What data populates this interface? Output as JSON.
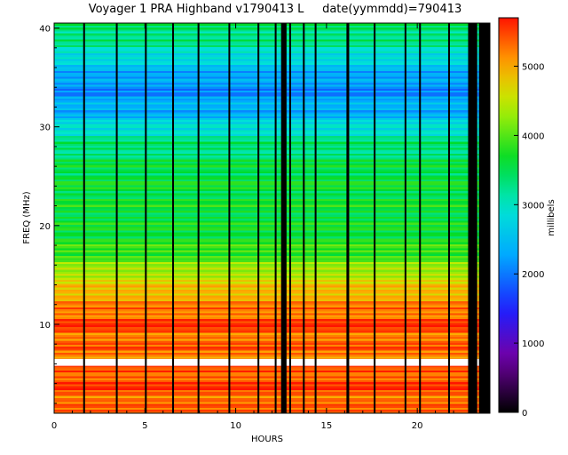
{
  "chart_data": {
    "type": "heatmap",
    "title": "Voyager 1 PRA Highband v1790413 L     date(yymmdd)=790413",
    "xlabel": "HOURS",
    "ylabel": "FREQ (MHz)",
    "xlim": [
      0,
      24
    ],
    "ylim": [
      1,
      40.5
    ],
    "xticks": [
      "0",
      "5",
      "10",
      "15",
      "20"
    ],
    "yticks": [
      "10",
      "20",
      "30",
      "40"
    ],
    "colorbar": {
      "label": "millibels",
      "range": [
        0,
        5700
      ],
      "ticks": [
        "0",
        "1000",
        "2000",
        "3000",
        "4000",
        "5000"
      ]
    },
    "background_profile": [
      {
        "freq": 1,
        "value": 5200
      },
      {
        "freq": 4,
        "value": 5500
      },
      {
        "freq": 6,
        "value": 5300
      },
      {
        "freq": 9,
        "value": 5300
      },
      {
        "freq": 10,
        "value": 5600
      },
      {
        "freq": 11,
        "value": 5300
      },
      {
        "freq": 13,
        "value": 5000
      },
      {
        "freq": 15,
        "value": 4500
      },
      {
        "freq": 17,
        "value": 3900
      },
      {
        "freq": 20,
        "value": 3600
      },
      {
        "freq": 25,
        "value": 3600
      },
      {
        "freq": 29,
        "value": 3200
      },
      {
        "freq": 31,
        "value": 2500
      },
      {
        "freq": 34,
        "value": 2100
      },
      {
        "freq": 36,
        "value": 2500
      },
      {
        "freq": 38,
        "value": 3100
      },
      {
        "freq": 40.5,
        "value": 3500
      }
    ],
    "saturated_band_mhz": [
      5.8,
      6.5
    ],
    "data_gaps_hours": [
      {
        "start": 1.6,
        "end": 1.7
      },
      {
        "start": 3.4,
        "end": 3.5
      },
      {
        "start": 5.0,
        "end": 5.1
      },
      {
        "start": 6.5,
        "end": 6.6
      },
      {
        "start": 7.9,
        "end": 8.0
      },
      {
        "start": 9.6,
        "end": 9.7
      },
      {
        "start": 11.2,
        "end": 11.3
      },
      {
        "start": 12.15,
        "end": 12.25
      },
      {
        "start": 12.95,
        "end": 13.05
      },
      {
        "start": 13.7,
        "end": 13.8
      },
      {
        "start": 14.35,
        "end": 14.45
      },
      {
        "start": 16.1,
        "end": 16.25
      },
      {
        "start": 17.6,
        "end": 17.7
      },
      {
        "start": 19.3,
        "end": 19.4
      },
      {
        "start": 20.1,
        "end": 20.2
      },
      {
        "start": 21.7,
        "end": 21.8
      },
      {
        "start": 22.8,
        "end": 23.3
      },
      {
        "start": 12.5,
        "end": 12.8
      },
      {
        "start": 23.4,
        "end": 24.0
      }
    ]
  }
}
